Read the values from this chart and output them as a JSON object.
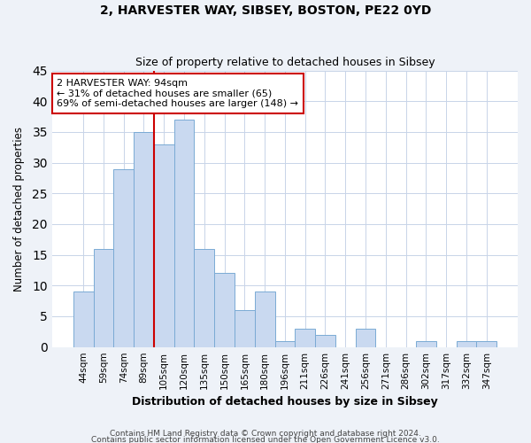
{
  "title": "2, HARVESTER WAY, SIBSEY, BOSTON, PE22 0YD",
  "subtitle": "Size of property relative to detached houses in Sibsey",
  "xlabel": "Distribution of detached houses by size in Sibsey",
  "ylabel": "Number of detached properties",
  "bar_labels": [
    "44sqm",
    "59sqm",
    "74sqm",
    "89sqm",
    "105sqm",
    "120sqm",
    "135sqm",
    "150sqm",
    "165sqm",
    "180sqm",
    "196sqm",
    "211sqm",
    "226sqm",
    "241sqm",
    "256sqm",
    "271sqm",
    "286sqm",
    "302sqm",
    "317sqm",
    "332sqm",
    "347sqm"
  ],
  "bar_values": [
    9,
    16,
    29,
    35,
    33,
    37,
    16,
    12,
    6,
    9,
    1,
    3,
    2,
    0,
    3,
    0,
    0,
    1,
    0,
    1,
    1
  ],
  "bar_color": "#c9d9f0",
  "bar_edge_color": "#7aaad4",
  "vline_x": 3.5,
  "vline_color": "#cc0000",
  "annotation_text": "2 HARVESTER WAY: 94sqm\n← 31% of detached houses are smaller (65)\n69% of semi-detached houses are larger (148) →",
  "annotation_box_color": "#ffffff",
  "annotation_box_edge": "#cc0000",
  "ylim": [
    0,
    45
  ],
  "yticks": [
    0,
    5,
    10,
    15,
    20,
    25,
    30,
    35,
    40,
    45
  ],
  "footer1": "Contains HM Land Registry data © Crown copyright and database right 2024.",
  "footer2": "Contains public sector information licensed under the Open Government Licence v3.0.",
  "bg_color": "#eef2f8",
  "plot_bg_color": "#ffffff",
  "annot_fontsize": 8.0,
  "title_fontsize": 10,
  "subtitle_fontsize": 9,
  "xlabel_fontsize": 9,
  "ylabel_fontsize": 8.5,
  "tick_fontsize": 7.5
}
